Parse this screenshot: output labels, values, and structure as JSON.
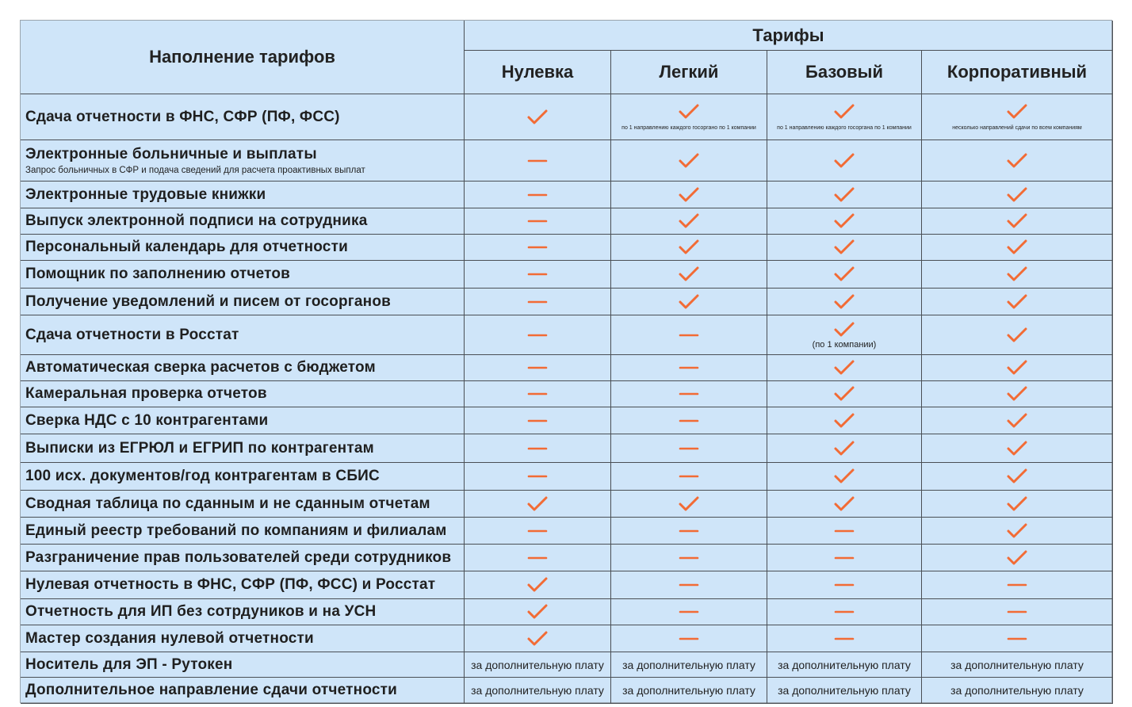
{
  "table": {
    "row_header": "Наполнение тарифов",
    "group_header": "Тарифы",
    "tariffs": [
      "Нулевка",
      "Легкий",
      "Базовый",
      "Корпоративный"
    ],
    "rows": [
      {
        "label": "Сдача отчетности в ФНС, СФР (ПФ, ФСС)",
        "cells": [
          true,
          {
            "check": true,
            "note": "по 1 направлению каждого госоргано по 1 компании"
          },
          {
            "check": true,
            "note": "по 1 направлению каждого госоргана по 1 компании"
          },
          {
            "check": true,
            "note": "несколько направлений сдачи по всем компаниям"
          }
        ]
      },
      {
        "label": "Электронные больничные и выплаты",
        "sublabel": "Запрос больничных в СФР и подача сведений для расчета проактивных выплат",
        "cells": [
          false,
          true,
          true,
          true
        ]
      },
      {
        "label": "Электронные трудовые книжки",
        "cells": [
          false,
          true,
          true,
          true
        ]
      },
      {
        "label": "Выпуск электронной подписи на сотрудника",
        "cells": [
          false,
          true,
          true,
          true
        ]
      },
      {
        "label": "Персональный календарь для отчетности",
        "cells": [
          false,
          true,
          true,
          true
        ]
      },
      {
        "label": "Помощник по заполнению отчетов",
        "cells": [
          false,
          true,
          true,
          true
        ]
      },
      {
        "label": "Получение уведомлений и писем от госорганов",
        "cells": [
          false,
          true,
          true,
          true
        ]
      },
      {
        "label": "Сдача отчетности в Росстат",
        "cells": [
          false,
          false,
          {
            "check": true,
            "note": "(по 1 компании)"
          },
          true
        ]
      },
      {
        "label": "Автоматическая сверка расчетов с бюджетом",
        "cells": [
          false,
          false,
          true,
          true
        ]
      },
      {
        "label": "Камеральная проверка отчетов",
        "cells": [
          false,
          false,
          true,
          true
        ]
      },
      {
        "label": "Сверка НДС с 10 контрагентами",
        "cells": [
          false,
          false,
          true,
          true
        ]
      },
      {
        "label": "Выписки из ЕГРЮЛ и ЕГРИП по контрагентам",
        "cells": [
          false,
          false,
          true,
          true
        ]
      },
      {
        "label": "100 исх. документов/год контрагентам в СБИС",
        "cells": [
          false,
          false,
          true,
          true
        ]
      },
      {
        "label": "Сводная таблица по сданным и не сданным отчетам",
        "cells": [
          true,
          true,
          true,
          true
        ]
      },
      {
        "label": "Единый реестр требований по компаниям и филиалам",
        "cells": [
          false,
          false,
          false,
          true
        ]
      },
      {
        "label": "Разграничение прав пользователей среди сотрудников",
        "cells": [
          false,
          false,
          false,
          true
        ]
      },
      {
        "label": "Нулевая отчетность в ФНС, СФР (ПФ, ФСС) и Росстат",
        "cells": [
          true,
          false,
          false,
          false
        ]
      },
      {
        "label": "Отчетность для ИП без сотрдуников и на УСН",
        "cells": [
          true,
          false,
          false,
          false
        ]
      },
      {
        "label": "Мастер создания нулевой отчетности",
        "cells": [
          true,
          false,
          false,
          false
        ]
      },
      {
        "label": "Носитель для ЭП - Рутокен",
        "cells": [
          "за дополнительную плату",
          "за дополнительную плату",
          "за дополнительную плату",
          "за дополнительную плату"
        ]
      },
      {
        "label": "Дополнительное направление сдачи отчетности",
        "cells": [
          "за дополнительную плату",
          "за дополнительную плату",
          "за дополнительную плату",
          "за дополнительную плату"
        ]
      }
    ]
  }
}
